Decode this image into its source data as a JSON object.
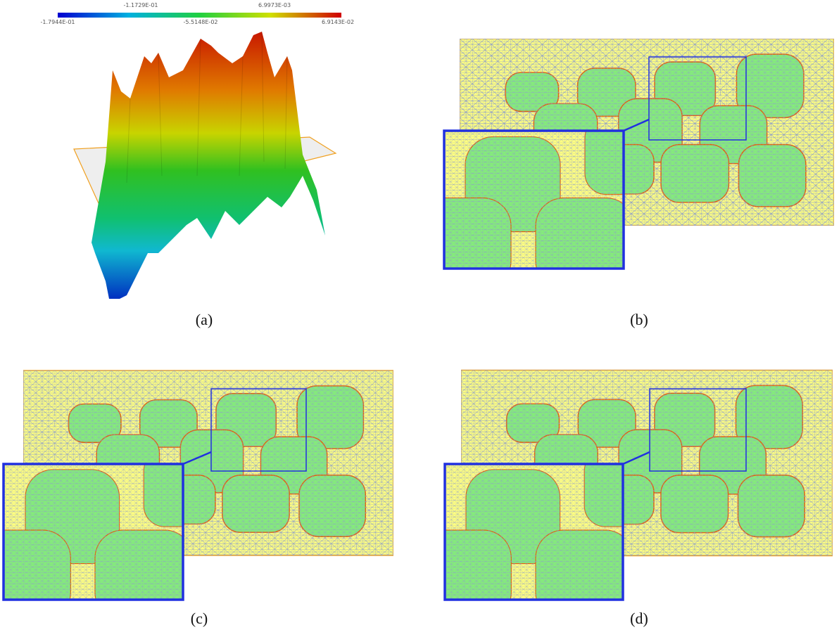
{
  "colorbar": {
    "top_labels": [
      "-1.1729E-01",
      "6.9973E-03"
    ],
    "bottom_labels": [
      "-1.7944E-01",
      "-5.5148E-02",
      "6.9143E-02"
    ]
  },
  "captions": [
    "(a)",
    "(b)",
    "(c)",
    "(d)"
  ]
}
